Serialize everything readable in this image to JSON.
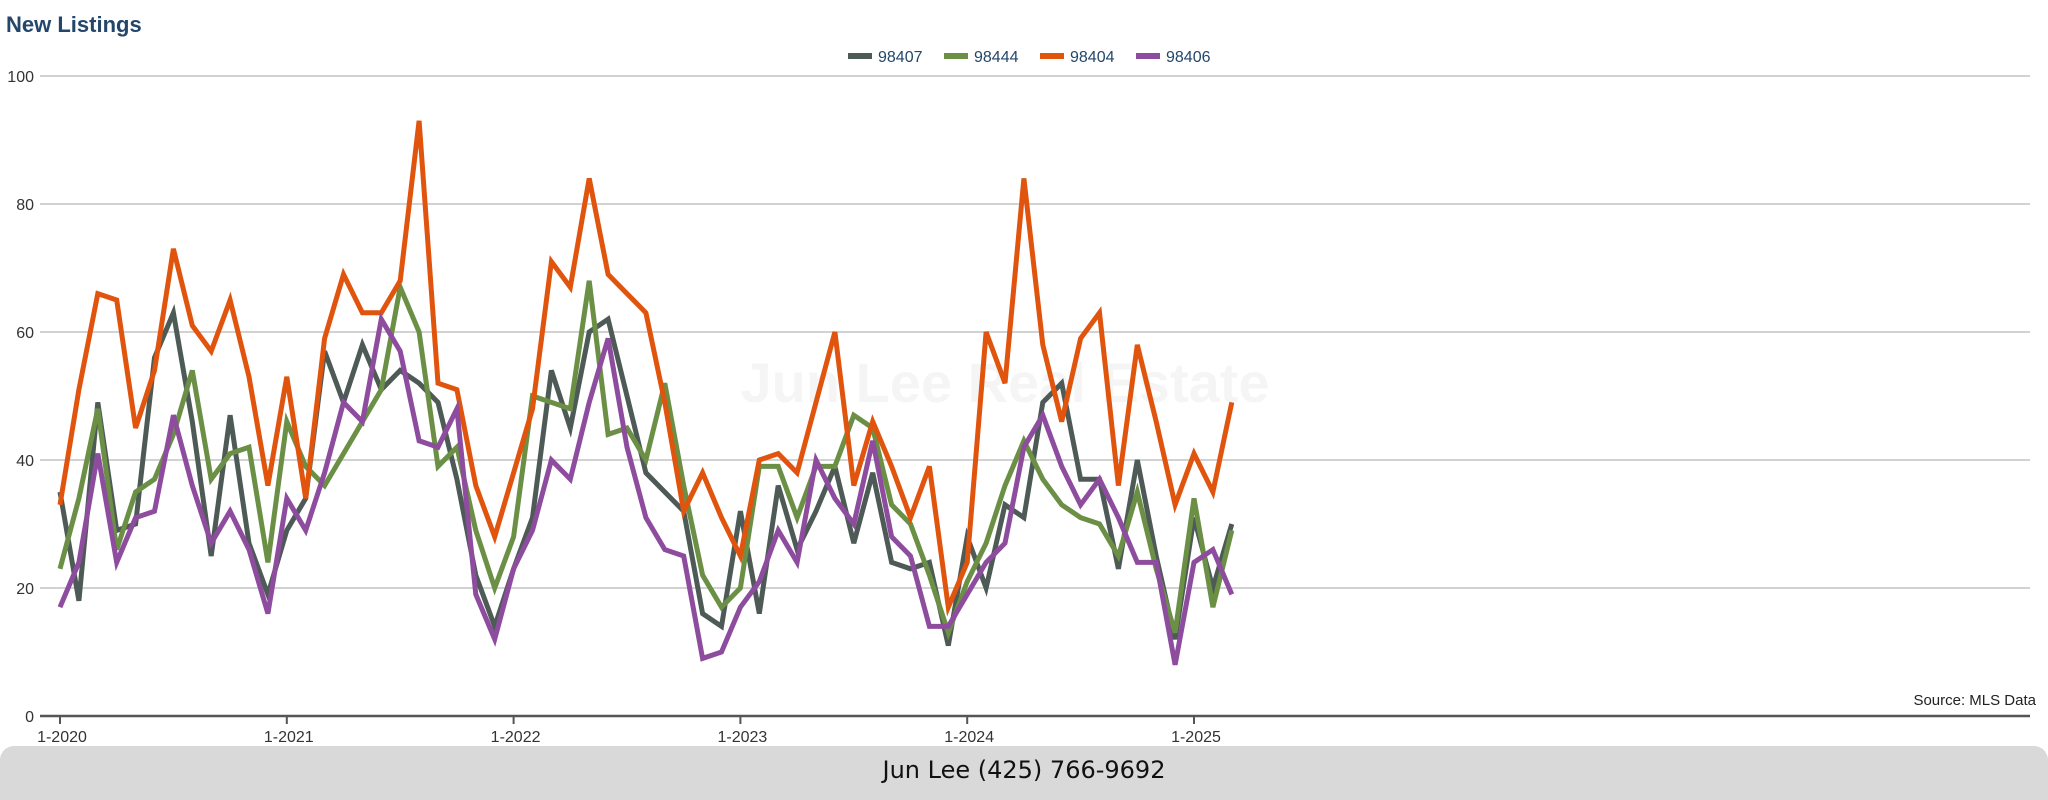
{
  "chart_data": {
    "type": "line",
    "title": "New Listings",
    "watermark": "Jun Lee Real Estate",
    "source": "Source: MLS Data",
    "xlabel": "",
    "ylabel": "",
    "ylim": [
      0,
      100
    ],
    "yticks": [
      0,
      20,
      40,
      60,
      80,
      100
    ],
    "grid": true,
    "legend_position": "top-center",
    "x_tick_labels": [
      {
        "label": "1-2020",
        "index": 0
      },
      {
        "label": "1-2021",
        "index": 12
      },
      {
        "label": "1-2022",
        "index": 24
      },
      {
        "label": "1-2023",
        "index": 36
      },
      {
        "label": "1-2024",
        "index": 48
      },
      {
        "label": "1-2025",
        "index": 60
      }
    ],
    "x_start": "1-2020",
    "x_count": 63,
    "series": [
      {
        "name": "98407",
        "color": "#4d5a56",
        "values": [
          35,
          18,
          49,
          29,
          30,
          56,
          63,
          46,
          25,
          47,
          27,
          19,
          29,
          34,
          57,
          49,
          58,
          51,
          54,
          52,
          49,
          37,
          22,
          14,
          23,
          31,
          54,
          45,
          60,
          62,
          50,
          38,
          35,
          32,
          16,
          14,
          32,
          16,
          36,
          26,
          32,
          39,
          27,
          38,
          24,
          23,
          24,
          11,
          28,
          20,
          33,
          31,
          49,
          52,
          37,
          37,
          23,
          40,
          25,
          12,
          31,
          20,
          30
        ]
      },
      {
        "name": "98444",
        "color": "#6a8f45",
        "values": [
          23,
          34,
          48,
          26,
          35,
          37,
          44,
          54,
          37,
          41,
          42,
          24,
          46,
          39,
          36,
          41,
          46,
          51,
          67,
          60,
          39,
          42,
          29,
          20,
          28,
          50,
          49,
          48,
          68,
          44,
          45,
          40,
          52,
          36,
          22,
          17,
          20,
          39,
          39,
          31,
          39,
          39,
          47,
          45,
          33,
          30,
          22,
          13,
          21,
          27,
          36,
          43,
          37,
          33,
          31,
          30,
          25,
          35,
          23,
          13,
          34,
          17,
          29
        ]
      },
      {
        "name": "98404",
        "color": "#e0540e",
        "values": [
          33,
          51,
          66,
          65,
          45,
          54,
          73,
          61,
          57,
          65,
          53,
          36,
          53,
          34,
          59,
          69,
          63,
          63,
          68,
          93,
          52,
          51,
          36,
          28,
          38,
          48,
          71,
          67,
          84,
          69,
          66,
          63,
          49,
          32,
          38,
          31,
          25,
          40,
          41,
          38,
          49,
          60,
          36,
          46,
          39,
          31,
          39,
          17,
          24,
          60,
          52,
          84,
          58,
          46,
          59,
          63,
          36,
          58,
          46,
          33,
          41,
          35,
          49
        ]
      },
      {
        "name": "98406",
        "color": "#8e4c9e",
        "values": [
          17,
          24,
          41,
          24,
          31,
          32,
          47,
          36,
          27,
          32,
          26,
          16,
          34,
          29,
          38,
          49,
          46,
          62,
          57,
          43,
          42,
          48,
          19,
          12,
          23,
          29,
          40,
          37,
          49,
          59,
          42,
          31,
          26,
          25,
          9,
          10,
          17,
          21,
          29,
          24,
          40,
          34,
          30,
          43,
          28,
          25,
          14,
          14,
          19,
          24,
          27,
          42,
          47,
          39,
          33,
          37,
          31,
          24,
          24,
          8,
          24,
          26,
          19
        ]
      }
    ]
  },
  "footer": {
    "contact": "Jun Lee (425) 766-9692"
  }
}
